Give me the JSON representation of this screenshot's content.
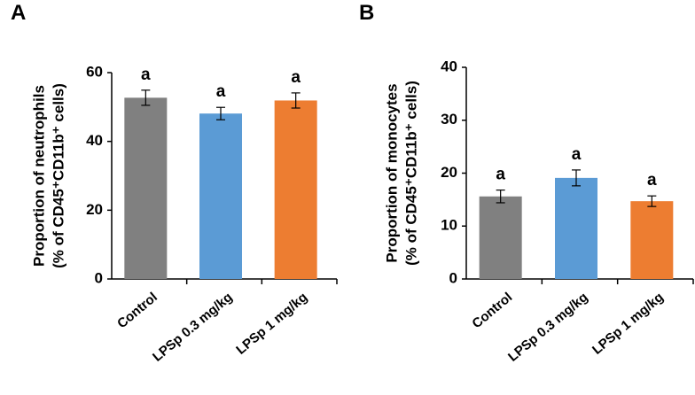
{
  "chart_data": [
    {
      "type": "bar",
      "panel": "A",
      "ylabel": [
        "Proportion of  neutrophils",
        "(% of CD45⁺CD11b⁺ cells)"
      ],
      "categories": [
        "Control",
        "LPSp 0.3 mg/kg",
        "LPSp 1 mg/kg"
      ],
      "values": [
        52.7,
        48.1,
        51.9
      ],
      "errors": [
        2.2,
        1.8,
        2.2
      ],
      "colors": [
        "#808080",
        "#5b9bd5",
        "#ed7d31"
      ],
      "annotations": [
        "a",
        "a",
        "a"
      ],
      "ylim": [
        0,
        60
      ],
      "yticks": [
        0,
        20,
        40,
        60
      ]
    },
    {
      "type": "bar",
      "panel": "B",
      "ylabel": [
        "Proportion of  monocytes",
        "(% of CD45⁺CD11b⁺ cells)"
      ],
      "categories": [
        "Control",
        "LPSp 0.3 mg/kg",
        "LPSp 1 mg/kg"
      ],
      "values": [
        15.6,
        19.1,
        14.7
      ],
      "errors": [
        1.2,
        1.5,
        1.0
      ],
      "colors": [
        "#808080",
        "#5b9bd5",
        "#ed7d31"
      ],
      "annotations": [
        "a",
        "a",
        "a"
      ],
      "ylim": [
        0,
        40
      ],
      "yticks": [
        0,
        10,
        20,
        30,
        40
      ]
    }
  ]
}
